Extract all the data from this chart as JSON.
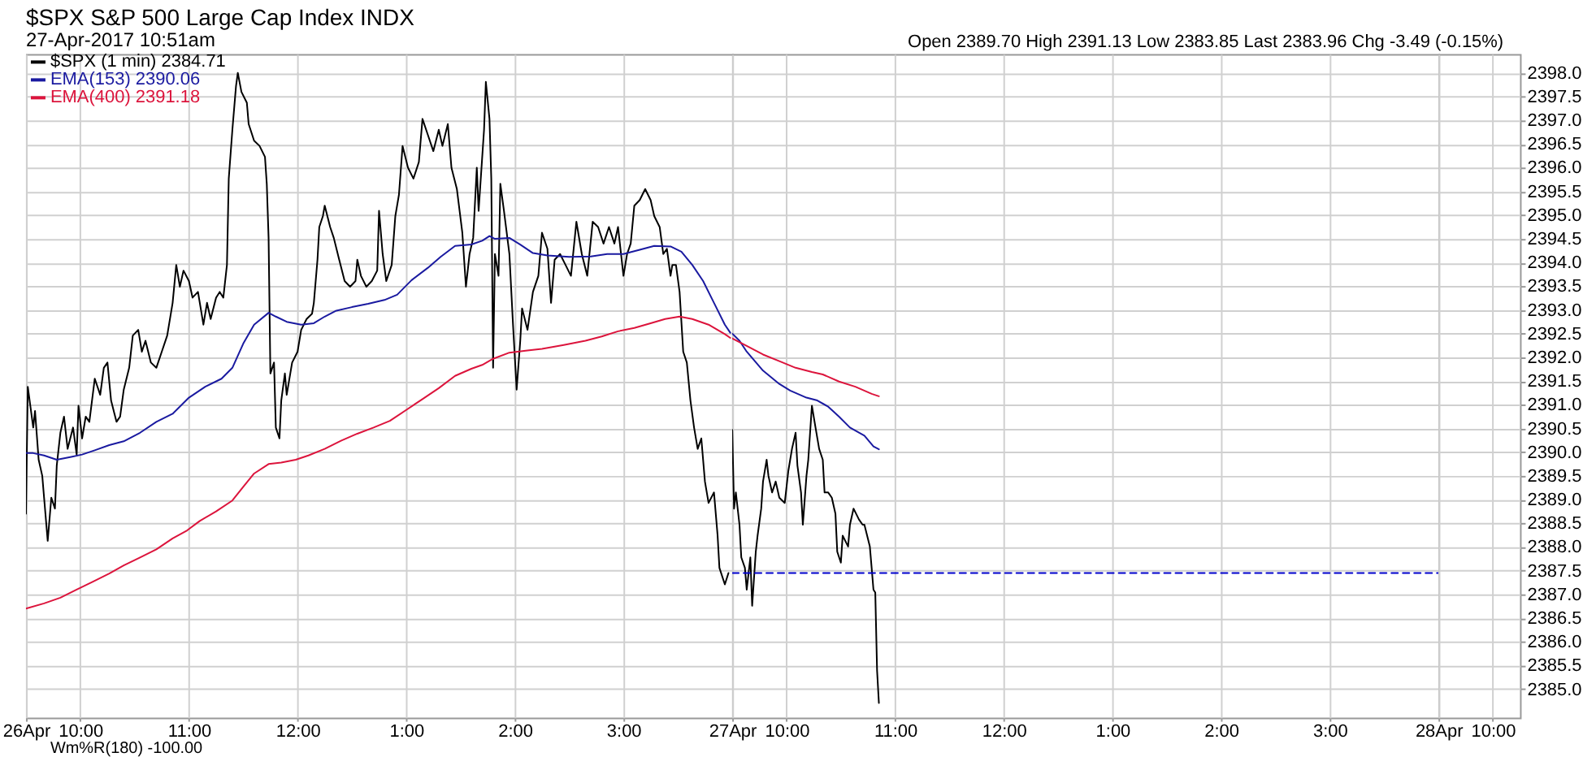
{
  "chart_data": [
    {
      "type": "line",
      "title": "$SPX S&P 500 Large Cap Index INDX",
      "subtitle": "27-Apr-2017 10:51am",
      "annotations": [
        "Open 2389.70 High 2391.13 Low 2383.85 Last 2383.96 Chg -3.49 (-0.15%)",
        "Wm%R(180) -100.00"
      ],
      "xlim": [
        "2017-04-26T09:30",
        "2017-04-26T16:00"
      ],
      "xticks": [
        {
          "value": "2017-04-26T09:30",
          "label": "26Apr"
        },
        {
          "value": "2017-04-26T10:00",
          "label": "10:00"
        },
        {
          "value": "2017-04-26T11:00",
          "label": "11:00"
        },
        {
          "value": "2017-04-26T12:00",
          "label": "12:00"
        },
        {
          "value": "2017-04-26T13:00",
          "label": "1:00"
        },
        {
          "value": "2017-04-26T14:00",
          "label": "2:00"
        },
        {
          "value": "2017-04-26T15:00",
          "label": "3:00"
        }
      ],
      "ylim": [
        2384.4,
        2398.4
      ],
      "yticks": [
        2385,
        2385.5,
        2386,
        2386.5,
        2387,
        2387.5,
        2388,
        2388.5,
        2389,
        2389.5,
        2390,
        2390.5,
        2391,
        2391.5,
        2392,
        2392.5,
        2393,
        2393.5,
        2394,
        2394.5,
        2395,
        2395.5,
        2396,
        2396.5,
        2397,
        2397.5,
        2398
      ],
      "tick_labels": "x",
      "grid": true,
      "legend": "top left",
      "series": [
        {
          "name": "$SPX (1 min) 2384.71",
          "color": "#000000",
          "x": [
            "2017-04-26T09:30",
            "2017-04-26T09:31",
            "2017-04-26T09:34",
            "2017-04-26T09:35",
            "2017-04-26T09:37",
            "2017-04-26T09:39",
            "2017-04-26T09:40",
            "2017-04-26T09:42",
            "2017-04-26T09:44",
            "2017-04-26T09:46",
            "2017-04-26T09:47",
            "2017-04-26T09:49",
            "2017-04-26T09:51",
            "2017-04-26T09:53",
            "2017-04-26T09:56",
            "2017-04-26T09:58",
            "2017-04-26T09:59",
            "2017-04-26T10:01",
            "2017-04-26T10:03",
            "2017-04-26T10:05",
            "2017-04-26T10:08",
            "2017-04-26T10:11",
            "2017-04-26T10:13",
            "2017-04-26T10:15",
            "2017-04-26T10:17",
            "2017-04-26T10:20",
            "2017-04-26T10:22",
            "2017-04-26T10:24",
            "2017-04-26T10:27",
            "2017-04-26T10:29",
            "2017-04-26T10:32",
            "2017-04-26T10:34",
            "2017-04-26T10:36",
            "2017-04-26T10:39",
            "2017-04-26T10:42",
            "2017-04-26T10:45",
            "2017-04-26T10:48",
            "2017-04-26T10:51",
            "2017-04-26T10:53",
            "2017-04-26T10:55",
            "2017-04-26T10:57",
            "2017-04-26T11:00",
            "2017-04-26T11:02",
            "2017-04-26T11:05",
            "2017-04-26T11:08",
            "2017-04-26T11:10",
            "2017-04-26T11:12",
            "2017-04-26T11:15",
            "2017-04-26T11:17",
            "2017-04-26T11:19",
            "2017-04-26T11:21",
            "2017-04-26T11:22",
            "2017-04-26T11:24",
            "2017-04-26T11:26",
            "2017-04-26T11:27",
            "2017-04-26T11:29",
            "2017-04-26T11:32",
            "2017-04-26T11:33",
            "2017-04-26T11:36",
            "2017-04-26T11:39",
            "2017-04-26T11:42",
            "2017-04-26T11:43",
            "2017-04-26T11:44",
            "2017-04-26T11:45",
            "2017-04-26T11:47",
            "2017-04-26T11:48",
            "2017-04-26T11:50",
            "2017-04-26T11:51",
            "2017-04-26T11:53",
            "2017-04-26T11:54",
            "2017-04-26T11:57",
            "2017-04-26T12:00",
            "2017-04-26T12:02",
            "2017-04-26T12:05",
            "2017-04-26T12:08",
            "2017-04-26T12:09",
            "2017-04-26T12:11",
            "2017-04-26T12:12",
            "2017-04-26T12:14",
            "2017-04-26T12:15",
            "2017-04-26T12:18",
            "2017-04-26T12:20",
            "2017-04-26T12:23",
            "2017-04-26T12:26",
            "2017-04-26T12:29",
            "2017-04-26T12:32",
            "2017-04-26T12:33",
            "2017-04-26T12:35",
            "2017-04-26T12:38",
            "2017-04-26T12:41",
            "2017-04-26T12:44",
            "2017-04-26T12:45",
            "2017-04-26T12:47",
            "2017-04-26T12:49",
            "2017-04-26T12:52",
            "2017-04-26T12:54",
            "2017-04-26T12:56",
            "2017-04-26T12:58",
            "2017-04-26T13:01",
            "2017-04-26T13:04",
            "2017-04-26T13:07",
            "2017-04-26T13:09",
            "2017-04-26T13:12",
            "2017-04-26T13:15",
            "2017-04-26T13:18",
            "2017-04-26T13:20",
            "2017-04-26T13:23",
            "2017-04-26T13:25",
            "2017-04-26T13:28",
            "2017-04-26T13:31",
            "2017-04-26T13:33",
            "2017-04-26T13:35",
            "2017-04-26T13:37",
            "2017-04-26T13:39",
            "2017-04-26T13:40",
            "2017-04-26T13:43",
            "2017-04-26T13:44",
            "2017-04-26T13:46",
            "2017-04-26T13:47",
            "2017-04-26T13:48",
            "2017-04-26T13:49",
            "2017-04-26T13:51",
            "2017-04-26T13:52",
            "2017-04-26T13:54",
            "2017-04-26T13:57",
            "2017-04-26T13:59",
            "2017-04-26T14:01",
            "2017-04-26T14:03",
            "2017-04-26T14:04",
            "2017-04-26T14:07",
            "2017-04-26T14:10",
            "2017-04-26T14:13",
            "2017-04-26T14:15",
            "2017-04-26T14:18",
            "2017-04-26T14:20",
            "2017-04-26T14:22",
            "2017-04-26T14:25",
            "2017-04-26T14:28",
            "2017-04-26T14:31",
            "2017-04-26T14:34",
            "2017-04-26T14:37",
            "2017-04-26T14:40",
            "2017-04-26T14:43",
            "2017-04-26T14:46",
            "2017-04-26T14:49",
            "2017-04-26T14:52",
            "2017-04-26T14:55",
            "2017-04-26T14:57",
            "2017-04-26T15:00",
            "2017-04-26T15:02",
            "2017-04-26T15:04",
            "2017-04-26T15:06",
            "2017-04-26T15:09",
            "2017-04-26T15:12",
            "2017-04-26T15:15",
            "2017-04-26T15:17",
            "2017-04-26T15:20",
            "2017-04-26T15:22",
            "2017-04-26T15:24",
            "2017-04-26T15:26",
            "2017-04-26T15:27",
            "2017-04-26T15:29",
            "2017-04-26T15:31",
            "2017-04-26T15:33",
            "2017-04-26T15:35",
            "2017-04-26T15:37",
            "2017-04-26T15:39",
            "2017-04-26T15:41",
            "2017-04-26T15:43",
            "2017-04-26T15:45",
            "2017-04-26T15:47",
            "2017-04-26T15:50",
            "2017-04-26T15:52",
            "2017-04-26T15:53",
            "2017-04-26T15:56",
            "2017-04-26T15:58"
          ],
          "values": [
            2388.7,
            2391.38,
            2390.52,
            2390.87,
            2389.84,
            2389.5,
            2389.04,
            2388.13,
            2389.04,
            2388.81,
            2389.72,
            2390.41,
            2390.75,
            2390.07,
            2390.52,
            2389.95,
            2390.98,
            2390.29,
            2390.75,
            2390.64,
            2391.55,
            2391.21,
            2391.78,
            2391.89,
            2391.09,
            2390.64,
            2390.75,
            2391.32,
            2391.78,
            2392.46,
            2392.58,
            2392.12,
            2392.35,
            2391.89,
            2391.78,
            2392.12,
            2392.46,
            2393.15,
            2393.95,
            2393.49,
            2393.83,
            2393.61,
            2393.26,
            2393.38,
            2392.69,
            2393.15,
            2392.81,
            2393.26,
            2393.38,
            2393.26,
            2393.95,
            2395.77,
            2396.8,
            2397.72,
            2398.0,
            2397.6,
            2397.37,
            2396.92,
            2396.57,
            2396.46,
            2396.23,
            2395.66,
            2394.52,
            2391.66,
            2391.89,
            2390.52,
            2390.29,
            2391.09,
            2391.66,
            2391.21,
            2391.89,
            2392.12,
            2392.58,
            2392.81,
            2392.92,
            2393.15,
            2394.06,
            2394.75,
            2394.98,
            2395.2,
            2394.75,
            2394.52,
            2394.06,
            2393.61,
            2393.49,
            2393.61,
            2394.06,
            2393.72,
            2393.49,
            2393.61,
            2393.83,
            2395.09,
            2394.18,
            2393.61,
            2393.95,
            2394.98,
            2395.43,
            2396.46,
            2396.0,
            2395.77,
            2396.12,
            2397.03,
            2396.69,
            2396.35,
            2396.8,
            2396.46,
            2396.92,
            2396.0,
            2395.55,
            2394.63,
            2393.49,
            2394.18,
            2394.52,
            2396.0,
            2395.09,
            2396.8,
            2397.81,
            2397.03,
            2395.77,
            2391.78,
            2394.18,
            2393.72,
            2395.66,
            2395.09,
            2394.18,
            2392.69,
            2391.32,
            2392.35,
            2393.03,
            2392.58,
            2393.38,
            2393.72,
            2394.63,
            2394.29,
            2393.15,
            2394.06,
            2394.18,
            2393.95,
            2393.72,
            2394.86,
            2394.18,
            2393.72,
            2394.86,
            2394.75,
            2394.4,
            2394.75,
            2394.4,
            2394.75,
            2393.72,
            2394.18,
            2394.4,
            2395.2,
            2395.32,
            2395.55,
            2395.32,
            2394.98,
            2394.75,
            2394.18,
            2394.29,
            2393.72,
            2393.95,
            2393.95,
            2393.38,
            2392.12,
            2391.89,
            2391.09,
            2390.52,
            2390.07,
            2390.29,
            2389.38,
            2388.93,
            2389.15,
            2388.24,
            2387.56,
            2387.21,
            2387.45
          ]
        },
        {
          "name": "EMA(153) 2390.06",
          "color": "#1a1aa0",
          "x": [
            "2017-04-26T09:30",
            "2017-04-26T09:34",
            "2017-04-26T09:40",
            "2017-04-26T09:47",
            "2017-04-26T09:55",
            "2017-04-26T10:01",
            "2017-04-26T10:08",
            "2017-04-26T10:16",
            "2017-04-26T10:24",
            "2017-04-26T10:33",
            "2017-04-26T10:42",
            "2017-04-26T10:51",
            "2017-04-26T11:00",
            "2017-04-26T11:09",
            "2017-04-26T11:18",
            "2017-04-26T11:24",
            "2017-04-26T11:30",
            "2017-04-26T11:36",
            "2017-04-26T11:44",
            "2017-04-26T11:48",
            "2017-04-26T11:54",
            "2017-04-26T12:02",
            "2017-04-26T12:09",
            "2017-04-26T12:15",
            "2017-04-26T12:21",
            "2017-04-26T12:30",
            "2017-04-26T12:39",
            "2017-04-26T12:48",
            "2017-04-26T12:55",
            "2017-04-26T13:03",
            "2017-04-26T13:12",
            "2017-04-26T13:19",
            "2017-04-26T13:27",
            "2017-04-26T13:36",
            "2017-04-26T13:42",
            "2017-04-26T13:46",
            "2017-04-26T13:49",
            "2017-04-26T13:57",
            "2017-04-26T14:03",
            "2017-04-26T14:10",
            "2017-04-26T14:18",
            "2017-04-26T14:30",
            "2017-04-26T14:42",
            "2017-04-26T14:51",
            "2017-04-26T15:00",
            "2017-04-26T15:09",
            "2017-04-26T15:17",
            "2017-04-26T15:26",
            "2017-04-26T15:32",
            "2017-04-26T15:38",
            "2017-04-26T15:44",
            "2017-04-26T15:50",
            "2017-04-26T15:56",
            "2017-04-26T15:59"
          ],
          "values": [
            2389.98,
            2389.98,
            2389.93,
            2389.84,
            2389.9,
            2389.95,
            2390.04,
            2390.15,
            2390.23,
            2390.41,
            2390.64,
            2390.81,
            2391.15,
            2391.38,
            2391.55,
            2391.78,
            2392.29,
            2392.69,
            2392.94,
            2392.86,
            2392.75,
            2392.69,
            2392.72,
            2392.86,
            2392.98,
            2393.06,
            2393.13,
            2393.21,
            2393.32,
            2393.63,
            2393.89,
            2394.12,
            2394.35,
            2394.38,
            2394.46,
            2394.56,
            2394.5,
            2394.52,
            2394.38,
            2394.2,
            2394.15,
            2394.12,
            2394.13,
            2394.18,
            2394.18,
            2394.27,
            2394.35,
            2394.34,
            2394.23,
            2393.95,
            2393.61,
            2393.15,
            2392.69,
            2392.52
          ]
        },
        {
          "name": "EMA(400) 2391.18",
          "color": "#dc143c",
          "x": [
            "2017-04-26T09:30",
            "2017-04-26T09:40",
            "2017-04-26T09:49",
            "2017-04-26T09:58",
            "2017-04-26T10:07",
            "2017-04-26T10:16",
            "2017-04-26T10:24",
            "2017-04-26T10:33",
            "2017-04-26T10:42",
            "2017-04-26T10:51",
            "2017-04-26T10:59",
            "2017-04-26T11:06",
            "2017-04-26T11:15",
            "2017-04-26T11:24",
            "2017-04-26T11:30",
            "2017-04-26T11:36",
            "2017-04-26T11:44",
            "2017-04-26T11:51",
            "2017-04-26T11:59",
            "2017-04-26T12:06",
            "2017-04-26T12:15",
            "2017-04-26T12:24",
            "2017-04-26T12:33",
            "2017-04-26T12:42",
            "2017-04-26T12:51",
            "2017-04-26T13:00",
            "2017-04-26T13:09",
            "2017-04-26T13:18",
            "2017-04-26T13:27",
            "2017-04-26T13:36",
            "2017-04-26T13:42",
            "2017-04-26T13:48",
            "2017-04-26T13:57",
            "2017-04-26T14:06",
            "2017-04-26T14:15",
            "2017-04-26T14:27",
            "2017-04-26T14:39",
            "2017-04-26T14:48",
            "2017-04-26T14:57",
            "2017-04-26T15:06",
            "2017-04-26T15:15",
            "2017-04-26T15:23",
            "2017-04-26T15:31",
            "2017-04-26T15:38",
            "2017-04-26T15:47",
            "2017-04-26T15:56",
            "2017-04-26T15:59"
          ],
          "values": [
            2386.7,
            2386.81,
            2386.93,
            2387.1,
            2387.27,
            2387.44,
            2387.61,
            2387.78,
            2387.95,
            2388.18,
            2388.35,
            2388.55,
            2388.75,
            2388.98,
            2389.27,
            2389.55,
            2389.75,
            2389.78,
            2389.84,
            2389.93,
            2390.07,
            2390.24,
            2390.39,
            2390.52,
            2390.66,
            2390.89,
            2391.12,
            2391.35,
            2391.61,
            2391.76,
            2391.84,
            2391.97,
            2392.1,
            2392.14,
            2392.18,
            2392.26,
            2392.35,
            2392.44,
            2392.55,
            2392.62,
            2392.72,
            2392.81,
            2392.86,
            2392.81,
            2392.69,
            2392.49,
            2392.41
          ]
        }
      ]
    },
    {
      "type": "line",
      "xlim": [
        "2017-04-27T09:30",
        "2017-04-27T16:00"
      ],
      "xticks": [
        {
          "value": "2017-04-27T09:30",
          "label": "27Apr"
        },
        {
          "value": "2017-04-27T10:00",
          "label": "10:00"
        },
        {
          "value": "2017-04-27T11:00",
          "label": "11:00"
        },
        {
          "value": "2017-04-27T12:00",
          "label": "12:00"
        },
        {
          "value": "2017-04-27T13:00",
          "label": "1:00"
        },
        {
          "value": "2017-04-27T14:00",
          "label": "2:00"
        },
        {
          "value": "2017-04-27T15:00",
          "label": "3:00"
        }
      ],
      "ylim": [
        2384.4,
        2398.4
      ],
      "yticks": [
        2385,
        2385.5,
        2386,
        2386.5,
        2387,
        2387.5,
        2388,
        2388.5,
        2389,
        2389.5,
        2390,
        2390.5,
        2391,
        2391.5,
        2392,
        2392.5,
        2393,
        2393.5,
        2394,
        2394.5,
        2395,
        2395.5,
        2396,
        2396.5,
        2397,
        2397.5,
        2398
      ],
      "tick_labels": "x",
      "grid": true,
      "series": [
        {
          "color": "#000000",
          "x": [
            "2017-04-27T09:30",
            "2017-04-27T09:31",
            "2017-04-27T09:32",
            "2017-04-27T09:34",
            "2017-04-27T09:35",
            "2017-04-27T09:37",
            "2017-04-27T09:38",
            "2017-04-27T09:40",
            "2017-04-27T09:41",
            "2017-04-27T09:43",
            "2017-04-27T09:44",
            "2017-04-27T09:46",
            "2017-04-27T09:47",
            "2017-04-27T09:49",
            "2017-04-27T09:50",
            "2017-04-27T09:52",
            "2017-04-27T09:54",
            "2017-04-27T09:56",
            "2017-04-27T09:59",
            "2017-04-27T10:01",
            "2017-04-27T10:03",
            "2017-04-27T10:05",
            "2017-04-27T10:06",
            "2017-04-27T10:08",
            "2017-04-27T10:09",
            "2017-04-27T10:11",
            "2017-04-27T10:12",
            "2017-04-27T10:14",
            "2017-04-27T10:16",
            "2017-04-27T10:18",
            "2017-04-27T10:20",
            "2017-04-27T10:21",
            "2017-04-27T10:23",
            "2017-04-27T10:25",
            "2017-04-27T10:27",
            "2017-04-27T10:28",
            "2017-04-27T10:30",
            "2017-04-27T10:31",
            "2017-04-27T10:34",
            "2017-04-27T10:35",
            "2017-04-27T10:37",
            "2017-04-27T10:40",
            "2017-04-27T10:42",
            "2017-04-27T10:43",
            "2017-04-27T10:46",
            "2017-04-27T10:47",
            "2017-04-27T10:48",
            "2017-04-27T10:49",
            "2017-04-27T10:50",
            "2017-04-27T10:51"
          ],
          "values": [
            2390.47,
            2388.81,
            2389.15,
            2388.47,
            2387.78,
            2387.56,
            2387.1,
            2387.78,
            2386.76,
            2387.9,
            2388.24,
            2388.81,
            2389.38,
            2389.84,
            2389.5,
            2389.15,
            2389.38,
            2389.04,
            2388.93,
            2389.61,
            2390.07,
            2390.41,
            2389.72,
            2389.15,
            2388.47,
            2389.5,
            2389.84,
            2390.98,
            2390.52,
            2390.07,
            2389.84,
            2389.15,
            2389.15,
            2389.04,
            2388.7,
            2387.9,
            2387.67,
            2388.24,
            2388.01,
            2388.47,
            2388.81,
            2388.58,
            2388.47,
            2388.47,
            2388.01,
            2387.56,
            2387.1,
            2387.04,
            2385.39,
            2384.71
          ]
        },
        {
          "color": "#1a1aa0",
          "x": [
            "2017-04-27T09:30",
            "2017-04-27T09:34",
            "2017-04-27T09:38",
            "2017-04-27T09:47",
            "2017-04-27T09:56",
            "2017-04-27T10:02",
            "2017-04-27T10:11",
            "2017-04-27T10:17",
            "2017-04-27T10:23",
            "2017-04-27T10:29",
            "2017-04-27T10:35",
            "2017-04-27T10:43",
            "2017-04-27T10:48",
            "2017-04-27T10:51"
          ],
          "values": [
            2392.5,
            2392.35,
            2392.12,
            2391.72,
            2391.44,
            2391.3,
            2391.15,
            2391.09,
            2390.96,
            2390.75,
            2390.52,
            2390.35,
            2390.12,
            2390.06
          ]
        },
        {
          "color": "#dc143c",
          "x": [
            "2017-04-27T09:30",
            "2017-04-27T09:38",
            "2017-04-27T09:47",
            "2017-04-27T09:56",
            "2017-04-27T10:05",
            "2017-04-27T10:14",
            "2017-04-27T10:20",
            "2017-04-27T10:29",
            "2017-04-27T10:38",
            "2017-04-27T10:47",
            "2017-04-27T10:51"
          ],
          "values": [
            2392.4,
            2392.24,
            2392.06,
            2391.92,
            2391.78,
            2391.69,
            2391.64,
            2391.49,
            2391.38,
            2391.23,
            2391.18
          ]
        },
        {
          "color": "#0000cc",
          "line_style": "dashed",
          "x": [
            "2017-04-27T09:30",
            "2017-04-27T16:00"
          ],
          "values": [
            2387.45,
            2387.45
          ]
        }
      ]
    },
    {
      "type": "line",
      "xlim": [
        "2017-04-28T09:30",
        "2017-04-28T10:15"
      ],
      "xticks": [
        {
          "value": "2017-04-28T09:30",
          "label": "28Apr"
        },
        {
          "value": "2017-04-28T10:00",
          "label": "10:00"
        }
      ],
      "ylim": [
        2384.4,
        2398.4
      ],
      "yticks": [
        {
          "value": 2385,
          "label": "2385.0"
        },
        2385.5,
        {
          "value": 2386,
          "label": "2386.0"
        },
        2386.5,
        {
          "value": 2387,
          "label": "2387.0"
        },
        2387.5,
        {
          "value": 2388,
          "label": "2388.0"
        },
        2388.5,
        {
          "value": 2389,
          "label": "2389.0"
        },
        2389.5,
        {
          "value": 2390,
          "label": "2390.0"
        },
        2390.5,
        {
          "value": 2391,
          "label": "2391.0"
        },
        2391.5,
        {
          "value": 2392,
          "label": "2392.0"
        },
        2392.5,
        {
          "value": 2393,
          "label": "2393.0"
        },
        2393.5,
        {
          "value": 2394,
          "label": "2394.0"
        },
        2394.5,
        {
          "value": 2395,
          "label": "2395.0"
        },
        2395.5,
        {
          "value": 2396,
          "label": "2396.0"
        },
        2396.5,
        {
          "value": 2397,
          "label": "2397.0"
        },
        2397.5,
        {
          "value": 2398,
          "label": "2398.0"
        }
      ],
      "grid": true
    }
  ]
}
